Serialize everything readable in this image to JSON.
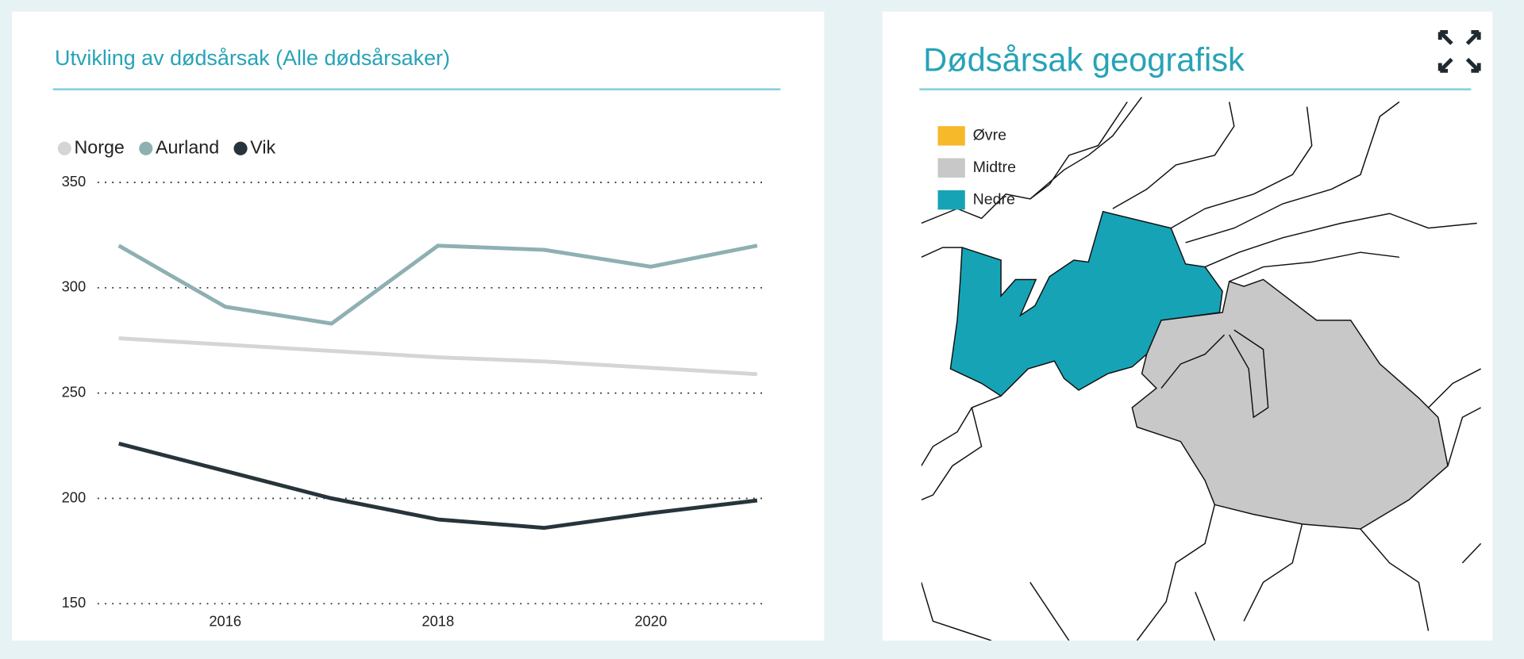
{
  "chart_data": {
    "type": "line",
    "title": "Utvikling av dødsårsak (Alle dødsårsaker)",
    "x": [
      2015,
      2016,
      2017,
      2018,
      2019,
      2020,
      2021
    ],
    "series": [
      {
        "name": "Norge",
        "color": "#d4d6d6",
        "values": [
          276,
          273,
          270,
          267,
          265,
          262,
          259
        ]
      },
      {
        "name": "Aurland",
        "color": "#8fb0b2",
        "values": [
          320,
          291,
          283,
          320,
          318,
          310,
          320
        ]
      },
      {
        "name": "Vik",
        "color": "#27343b",
        "values": [
          226,
          213,
          200,
          190,
          186,
          193,
          199
        ]
      }
    ],
    "xlim": [
      2014.8,
      2021.1
    ],
    "xticks": [
      2016,
      2018,
      2020
    ],
    "ylim": [
      150,
      350
    ],
    "yticks": [
      150,
      200,
      250,
      300,
      350
    ],
    "grid": true
  },
  "map": {
    "title": "Dødsårsak geografisk",
    "legend": [
      {
        "label": "Øvre",
        "color": "#f6b92a"
      },
      {
        "label": "Midtre",
        "color": "#c8c8c8"
      },
      {
        "label": "Nedre",
        "color": "#17a3b6"
      }
    ]
  }
}
